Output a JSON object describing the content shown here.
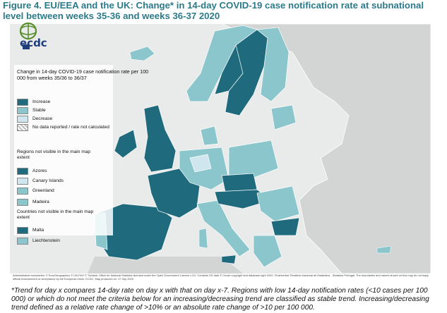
{
  "title": "Figure 4. EU/EEA and the UK: Change* in 14-day COVID-19 case notification rate at subnational level between weeks 35-36 and weeks 36-37 2020",
  "logo": {
    "text": "ecdc",
    "icon": "ecdc-globe-logo"
  },
  "legend": {
    "title": "Change in 14-day COVID-19 case notification rate per 100 000 from weeks 35/36 to 36/37",
    "items": [
      {
        "label": "Increase",
        "color": "#1f6b7d"
      },
      {
        "label": "Stable",
        "color": "#8bc6cc"
      },
      {
        "label": "Decrease",
        "color": "#cfe6ee"
      },
      {
        "label": "No data reported / rate not calculated",
        "color": "#bdbdbd"
      }
    ]
  },
  "regions_not_visible": {
    "title": "Regions not visible in the main map extent",
    "items": [
      {
        "label": "Azores",
        "color": "#1f6b7d"
      },
      {
        "label": "Canary Islands",
        "color": "#cfe6ee"
      },
      {
        "label": "Greenland",
        "color": "#8bc6cc"
      },
      {
        "label": "Madeira",
        "color": "#8bc6cc"
      }
    ]
  },
  "countries_not_visible": {
    "title": "Countries not visible in the main map extent",
    "items": [
      {
        "label": "Malta",
        "color": "#1f6b7d"
      },
      {
        "label": "Liechtenstein",
        "color": "#8bc6cc"
      }
    ]
  },
  "credits": "Administrative boundaries: © EuroGeographics © UN-FAO © Turkstat. Office for National Statistics licensed under the Open Government Licence v.3.0. Contains OS data © Crown copyright and database right 2020. ©Kartverket ©Instituto Nacional de Estatística - Statistics Portugal. The boundaries and names shown on this map do not imply official endorsement or acceptance by the European Union. ECDC. Map produced on: 17 Sep 2020",
  "footnote": "*Trend for day x compares 14-day rate on day x with that on day x-7. Regions with low 14-day notification rates (<10 cases per 100 000) or which do not meet the criteria below for an increasing/decreasing trend are classified as stable trend. Increasing/decreasing trend defined as a relative rate change of >10% or an absolute rate change of >10 per 100 000."
}
